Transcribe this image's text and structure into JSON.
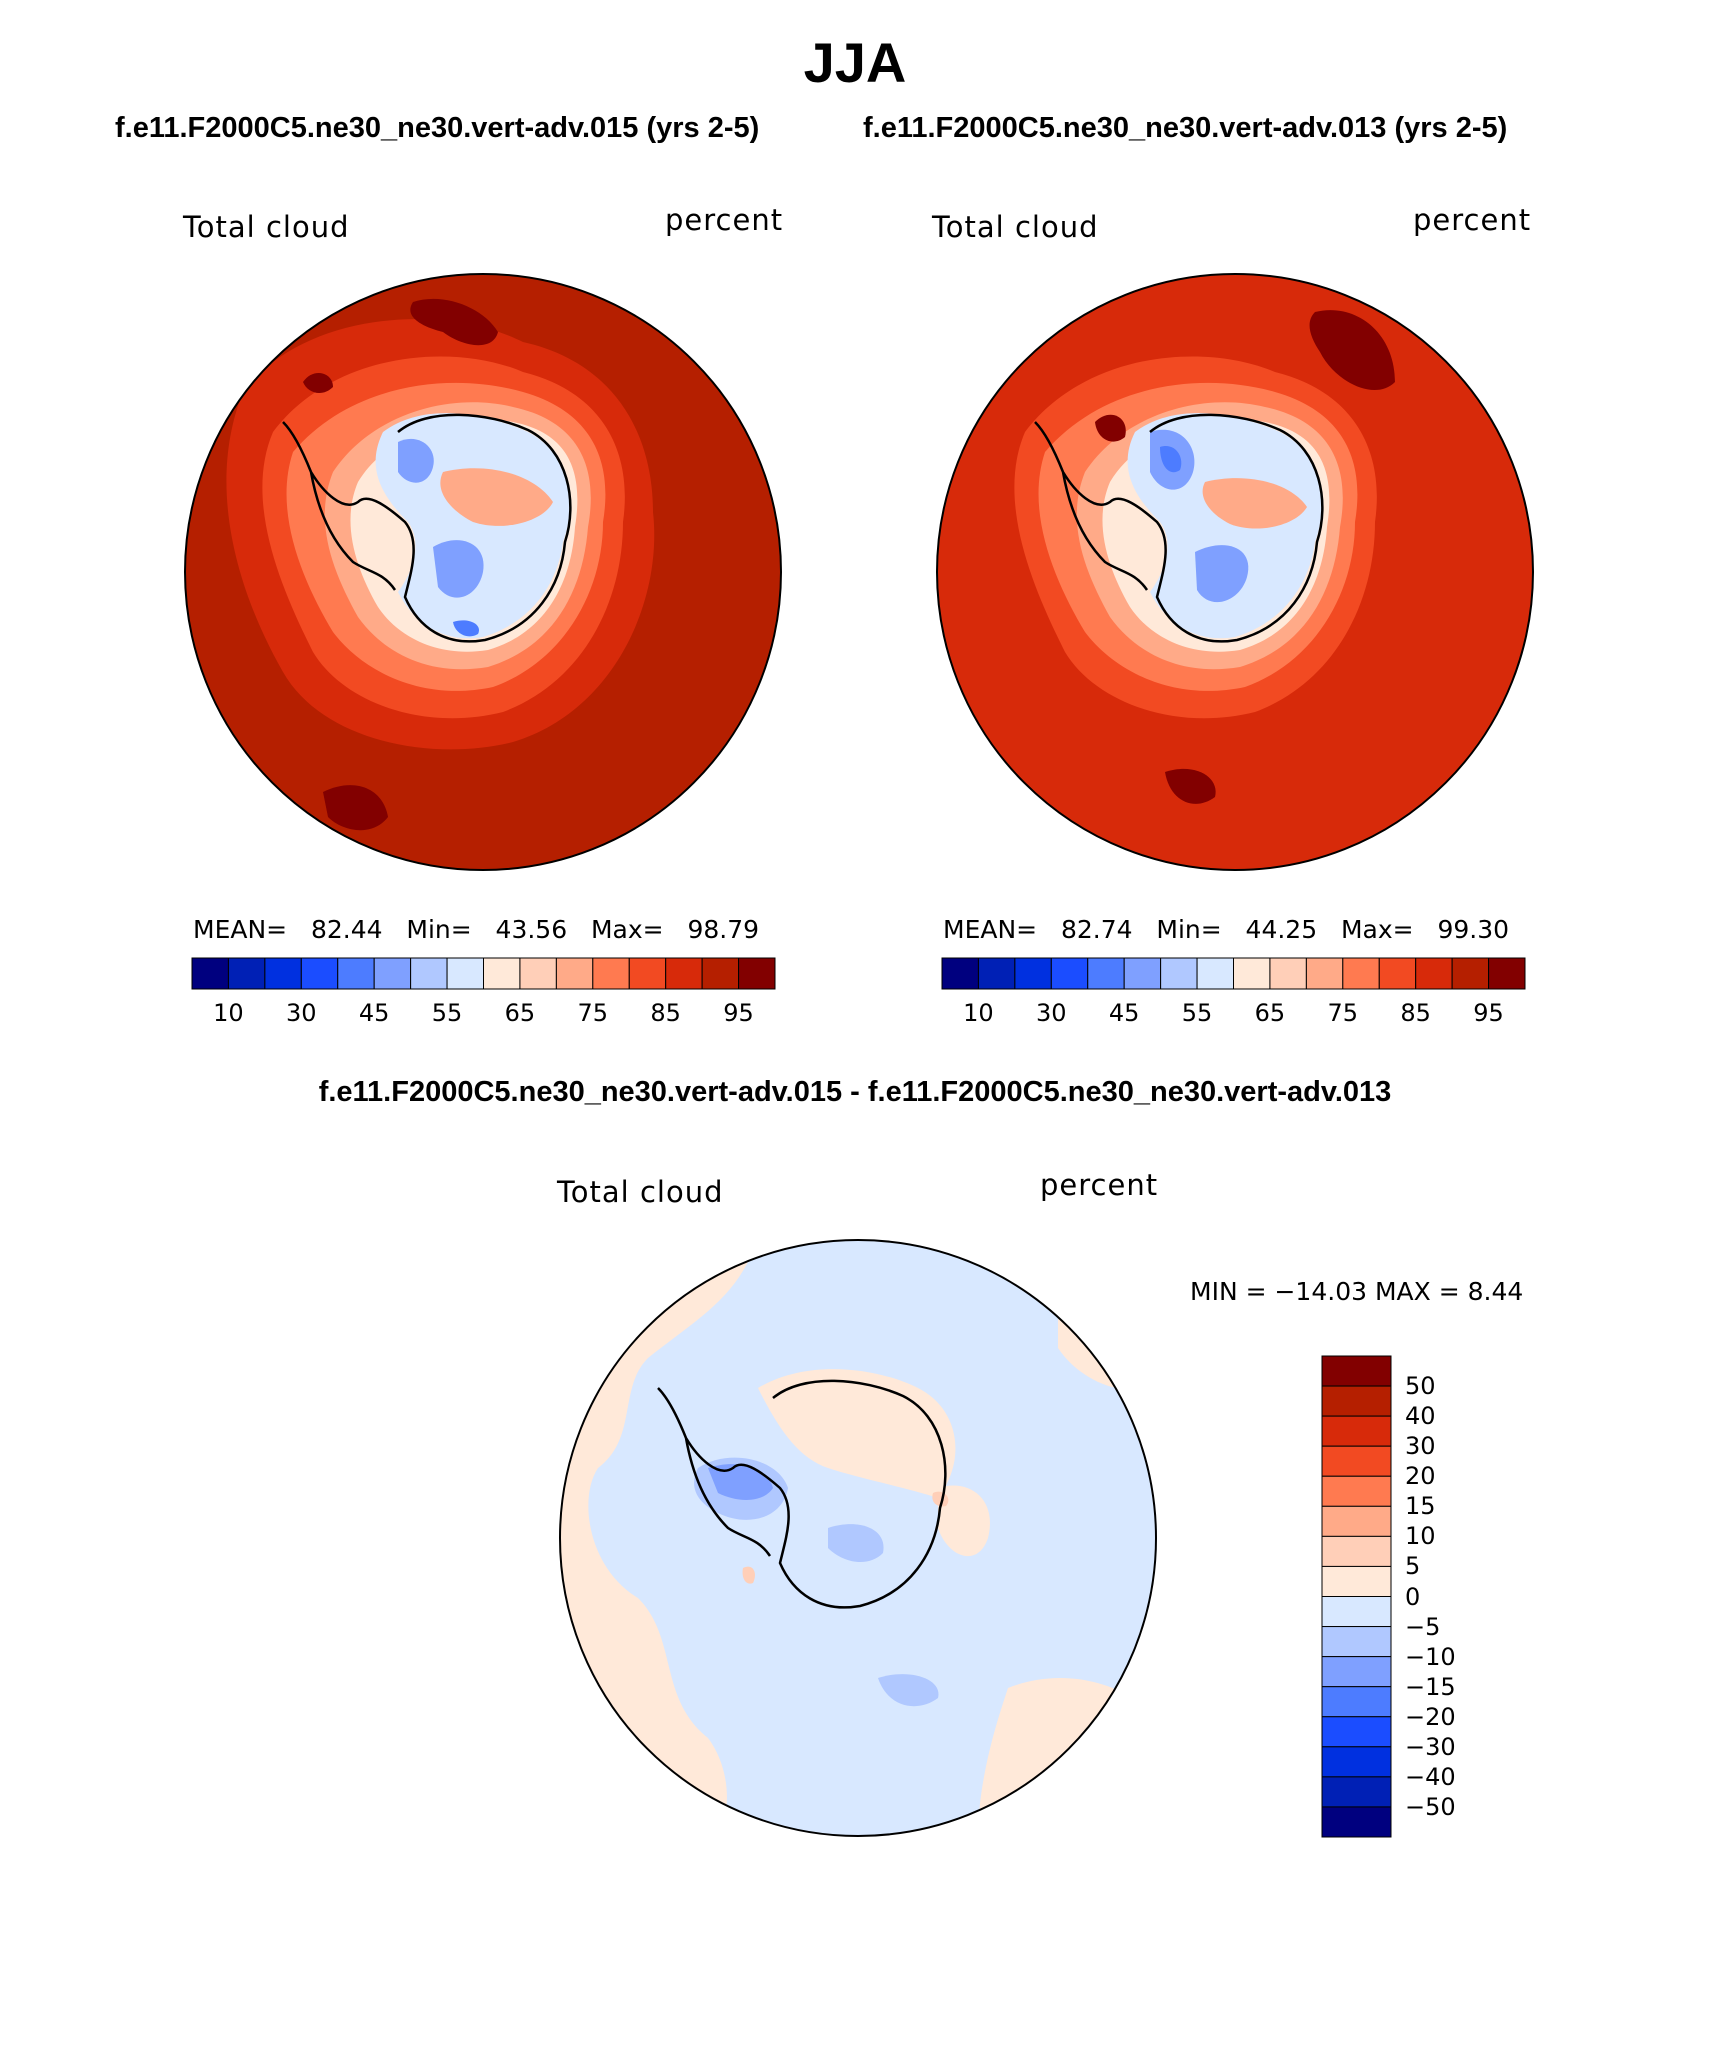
{
  "title": "JJA",
  "subtitles": {
    "top_left": "f.e11.F2000C5.ne30_ne30.vert-adv.015 (yrs 2-5)",
    "top_right": "f.e11.F2000C5.ne30_ne30.vert-adv.013 (yrs 2-5)",
    "bottom": "f.e11.F2000C5.ne30_ne30.vert-adv.015 - f.e11.F2000C5.ne30_ne30.vert-adv.013"
  },
  "panels": [
    {
      "variable": "Total cloud",
      "units": "percent",
      "stats": {
        "mean_label": "MEAN=",
        "mean": "82.44",
        "min_label": "Min=",
        "min": "43.56",
        "max_label": "Max=",
        "max": "98.79"
      }
    },
    {
      "variable": "Total cloud",
      "units": "percent",
      "stats": {
        "mean_label": "MEAN=",
        "mean": "82.74",
        "min_label": "Min=",
        "min": "44.25",
        "max_label": "Max=",
        "max": "99.30"
      }
    },
    {
      "variable": "Total cloud",
      "units": "percent",
      "minmax": "MIN = −14.03 MAX =    8.44"
    }
  ],
  "colorbar_abs": {
    "colors": [
      "#00007f",
      "#0020b5",
      "#0030e0",
      "#1b4dff",
      "#4d7cff",
      "#7fa0ff",
      "#b0c8ff",
      "#d8e8ff",
      "#ffe9d9",
      "#ffcfb8",
      "#ffaa88",
      "#ff7a50",
      "#f24a22",
      "#d72a0a",
      "#b51f00",
      "#820000"
    ],
    "ticks": [
      "10",
      "30",
      "45",
      "55",
      "65",
      "75",
      "85",
      "95"
    ]
  },
  "colorbar_diff": {
    "colors": [
      "#820000",
      "#b51f00",
      "#d72a0a",
      "#f24a22",
      "#ff7a50",
      "#ffaa88",
      "#ffcfb8",
      "#ffe9d9",
      "#d8e8ff",
      "#b0c8ff",
      "#7fa0ff",
      "#4d7cff",
      "#1b4dff",
      "#0030e0",
      "#0020b5",
      "#00007f"
    ],
    "ticks": [
      "50",
      "40",
      "30",
      "20",
      "15",
      "10",
      "5",
      "0",
      "−5",
      "−10",
      "−15",
      "−20",
      "−30",
      "−40",
      "−50"
    ]
  },
  "map_colors": {
    "ocean": "#b51f00",
    "ring_outer": "#d72a0a",
    "ring_mid": "#f24a22",
    "ring_inner": "#ff7a50",
    "coast_band": "#ffaa88",
    "coast_light": "#ffe9d9",
    "interior": "#d8e8ff",
    "low": "#7fa0ff",
    "lowest": "#4d7cff",
    "max_patch": "#820000",
    "diff_pos": "#ffe9d9",
    "diff_neg": "#d8e8ff",
    "diff_neg2": "#b0c8ff",
    "diff_neg3": "#7fa0ff",
    "diff_pos2": "#ffcfb8"
  }
}
